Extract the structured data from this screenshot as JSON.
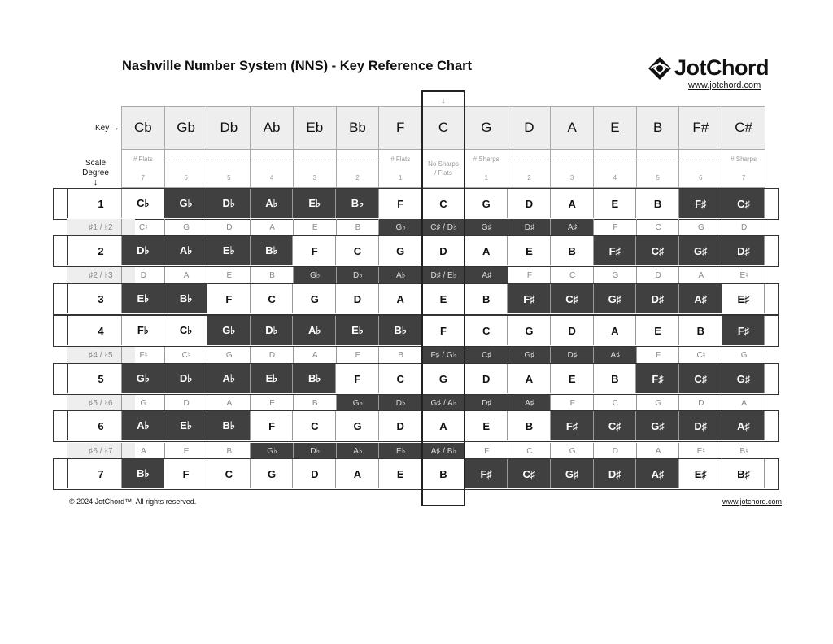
{
  "title": "Nashville Number System (NNS) - Key Reference Chart",
  "logo": {
    "name": "JotChord",
    "url": "www.jotchord.com"
  },
  "header": {
    "key_label": "Key →",
    "scale_label_1": "Scale",
    "scale_label_2": "Degree",
    "scale_arrow": "↓",
    "c_arrow": "↓",
    "keys": [
      "Cb",
      "Gb",
      "Db",
      "Ab",
      "Eb",
      "Bb",
      "F",
      "C",
      "G",
      "D",
      "A",
      "E",
      "B",
      "F#",
      "C#"
    ],
    "info_top": [
      "# Flats",
      "",
      "",
      "",
      "",
      "",
      "# Flats",
      "No Sharps / Flats",
      "# Sharps",
      "",
      "",
      "",
      "",
      "",
      "# Sharps"
    ],
    "info_count": [
      "7",
      "6",
      "5",
      "4",
      "3",
      "2",
      "1",
      "",
      "1",
      "2",
      "3",
      "4",
      "5",
      "6",
      "7"
    ]
  },
  "colors": {
    "dark": "#404040",
    "header_bg": "#eeeeee"
  },
  "rows": [
    {
      "label": "1",
      "type": "main",
      "cells": [
        "C♭",
        "G♭",
        "D♭",
        "A♭",
        "E♭",
        "B♭",
        "F",
        "C",
        "G",
        "D",
        "A",
        "E",
        "B",
        "F♯",
        "C♯"
      ],
      "dark": [
        0,
        1,
        1,
        1,
        1,
        1,
        0,
        0,
        0,
        0,
        0,
        0,
        0,
        1,
        1
      ]
    },
    {
      "label": "♯1 / ♭2",
      "type": "chr",
      "cells": [
        "C♮",
        "G",
        "D",
        "A",
        "E",
        "B",
        "G♭",
        "C♯ / D♭",
        "G♯",
        "D♯",
        "A♯",
        "F",
        "C",
        "G",
        "D"
      ],
      "dark": [
        0,
        0,
        0,
        0,
        0,
        0,
        1,
        1,
        1,
        1,
        1,
        0,
        0,
        0,
        0
      ]
    },
    {
      "label": "2",
      "type": "main",
      "cells": [
        "D♭",
        "A♭",
        "E♭",
        "B♭",
        "F",
        "C",
        "G",
        "D",
        "A",
        "E",
        "B",
        "F♯",
        "C♯",
        "G♯",
        "D♯"
      ],
      "dark": [
        1,
        1,
        1,
        1,
        0,
        0,
        0,
        0,
        0,
        0,
        0,
        1,
        1,
        1,
        1
      ]
    },
    {
      "label": "♯2 / ♭3",
      "type": "chr",
      "cells": [
        "D",
        "A",
        "E",
        "B",
        "G♭",
        "D♭",
        "A♭",
        "D♯ / E♭",
        "A♯",
        "F",
        "C",
        "G",
        "D",
        "A",
        "E♮"
      ],
      "dark": [
        0,
        0,
        0,
        0,
        1,
        1,
        1,
        1,
        1,
        0,
        0,
        0,
        0,
        0,
        0
      ]
    },
    {
      "label": "3",
      "type": "main",
      "cells": [
        "E♭",
        "B♭",
        "F",
        "C",
        "G",
        "D",
        "A",
        "E",
        "B",
        "F♯",
        "C♯",
        "G♯",
        "D♯",
        "A♯",
        "E♯"
      ],
      "dark": [
        1,
        1,
        0,
        0,
        0,
        0,
        0,
        0,
        0,
        1,
        1,
        1,
        1,
        1,
        0
      ]
    },
    {
      "label": "4",
      "type": "main",
      "cells": [
        "F♭",
        "C♭",
        "G♭",
        "D♭",
        "A♭",
        "E♭",
        "B♭",
        "F",
        "C",
        "G",
        "D",
        "A",
        "E",
        "B",
        "F♯"
      ],
      "dark": [
        0,
        0,
        1,
        1,
        1,
        1,
        1,
        0,
        0,
        0,
        0,
        0,
        0,
        0,
        1
      ]
    },
    {
      "label": "♯4 / ♭5",
      "type": "chr",
      "cells": [
        "F♮",
        "C♮",
        "G",
        "D",
        "A",
        "E",
        "B",
        "F♯ / G♭",
        "C♯",
        "G♯",
        "D♯",
        "A♯",
        "F",
        "C♮",
        "G"
      ],
      "dark": [
        0,
        0,
        0,
        0,
        0,
        0,
        0,
        1,
        1,
        1,
        1,
        1,
        0,
        0,
        0
      ]
    },
    {
      "label": "5",
      "type": "main",
      "cells": [
        "G♭",
        "D♭",
        "A♭",
        "E♭",
        "B♭",
        "F",
        "C",
        "G",
        "D",
        "A",
        "E",
        "B",
        "F♯",
        "C♯",
        "G♯"
      ],
      "dark": [
        1,
        1,
        1,
        1,
        1,
        0,
        0,
        0,
        0,
        0,
        0,
        0,
        1,
        1,
        1
      ]
    },
    {
      "label": "♯5 / ♭6",
      "type": "chr",
      "cells": [
        "G",
        "D",
        "A",
        "E",
        "B",
        "G♭",
        "D♭",
        "G♯ / A♭",
        "D♯",
        "A♯",
        "F",
        "C",
        "G",
        "D",
        "A"
      ],
      "dark": [
        0,
        0,
        0,
        0,
        0,
        1,
        1,
        1,
        1,
        1,
        0,
        0,
        0,
        0,
        0
      ]
    },
    {
      "label": "6",
      "type": "main",
      "cells": [
        "A♭",
        "E♭",
        "B♭",
        "F",
        "C",
        "G",
        "D",
        "A",
        "E",
        "B",
        "F♯",
        "C♯",
        "G♯",
        "D♯",
        "A♯"
      ],
      "dark": [
        1,
        1,
        1,
        0,
        0,
        0,
        0,
        0,
        0,
        0,
        1,
        1,
        1,
        1,
        1
      ]
    },
    {
      "label": "♯6 / ♭7",
      "type": "chr",
      "cells": [
        "A",
        "E",
        "B",
        "G♭",
        "D♭",
        "A♭",
        "E♭",
        "A♯ / B♭",
        "F",
        "C",
        "G",
        "D",
        "A",
        "E♮",
        "B♮"
      ],
      "dark": [
        0,
        0,
        0,
        1,
        1,
        1,
        1,
        1,
        0,
        0,
        0,
        0,
        0,
        0,
        0
      ]
    },
    {
      "label": "7",
      "type": "main",
      "cells": [
        "B♭",
        "F",
        "C",
        "G",
        "D",
        "A",
        "E",
        "B",
        "F♯",
        "C♯",
        "G♯",
        "D♯",
        "A♯",
        "E♯",
        "B♯"
      ],
      "dark": [
        1,
        0,
        0,
        0,
        0,
        0,
        0,
        0,
        1,
        1,
        1,
        1,
        1,
        0,
        0
      ]
    }
  ],
  "footer": {
    "copyright": "© 2024 JotChord™. All rights reserved.",
    "url": "www.jotchord.com"
  }
}
